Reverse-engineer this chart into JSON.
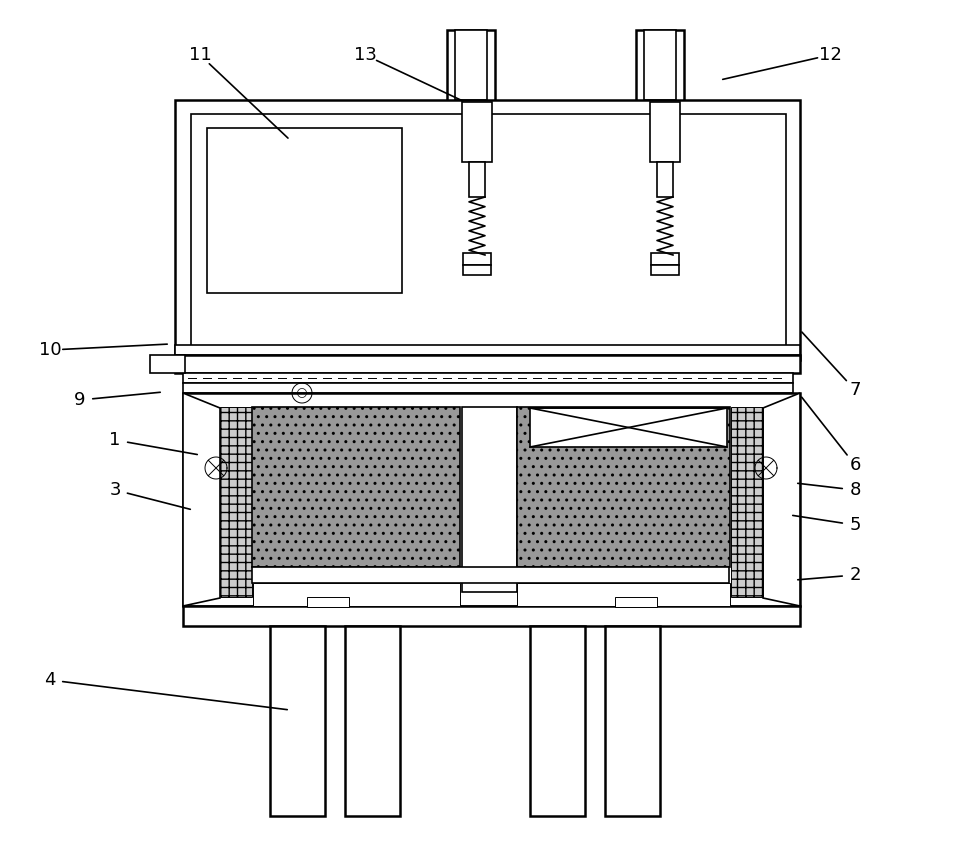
{
  "bg_color": "#ffffff",
  "lw_main": 1.8,
  "lw_med": 1.2,
  "lw_thin": 0.7,
  "annotations": [
    [
      "1",
      115,
      440,
      200,
      455
    ],
    [
      "2",
      855,
      575,
      795,
      580
    ],
    [
      "3",
      115,
      490,
      193,
      510
    ],
    [
      "4",
      50,
      680,
      290,
      710
    ],
    [
      "5",
      855,
      525,
      790,
      515
    ],
    [
      "6",
      855,
      465,
      800,
      395
    ],
    [
      "7",
      855,
      390,
      800,
      330
    ],
    [
      "8",
      855,
      490,
      795,
      483
    ],
    [
      "9",
      80,
      400,
      163,
      392
    ],
    [
      "10",
      50,
      350,
      170,
      344
    ],
    [
      "11",
      200,
      55,
      290,
      140
    ],
    [
      "12",
      830,
      55,
      720,
      80
    ],
    [
      "13",
      365,
      55,
      465,
      102
    ]
  ]
}
